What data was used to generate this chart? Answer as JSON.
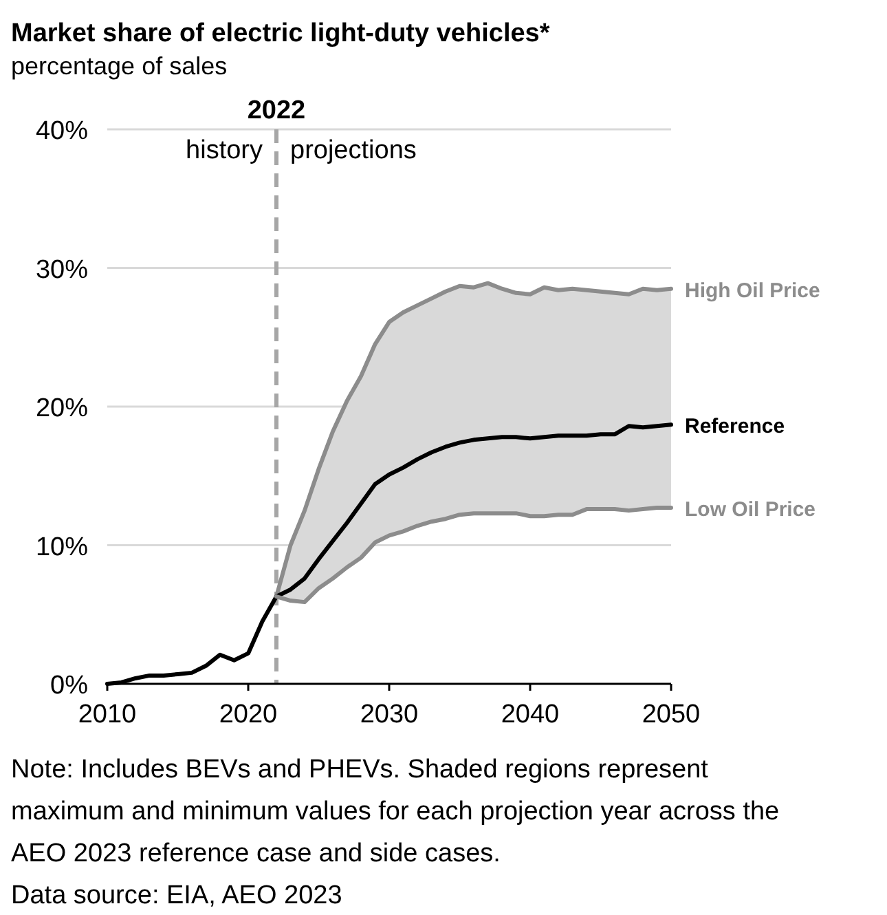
{
  "chart_data": {
    "type": "line",
    "title": "Market share of electric light-duty vehicles*",
    "subtitle": "percentage of sales",
    "x": [
      2010,
      2011,
      2012,
      2013,
      2014,
      2015,
      2016,
      2017,
      2018,
      2019,
      2020,
      2021,
      2022,
      2023,
      2024,
      2025,
      2026,
      2027,
      2028,
      2029,
      2030,
      2031,
      2032,
      2033,
      2034,
      2035,
      2036,
      2037,
      2038,
      2039,
      2040,
      2041,
      2042,
      2043,
      2044,
      2045,
      2046,
      2047,
      2048,
      2049,
      2050
    ],
    "series": [
      {
        "name": "High Oil Price",
        "color": "#8c8c8c",
        "x": [
          2022,
          2023,
          2024,
          2025,
          2026,
          2027,
          2028,
          2029,
          2030,
          2031,
          2032,
          2033,
          2034,
          2035,
          2036,
          2037,
          2038,
          2039,
          2040,
          2041,
          2042,
          2043,
          2044,
          2045,
          2046,
          2047,
          2048,
          2049,
          2050
        ],
        "values": [
          6.3,
          10.0,
          12.5,
          15.5,
          18.2,
          20.4,
          22.2,
          24.5,
          26.1,
          26.8,
          27.3,
          27.8,
          28.3,
          28.7,
          28.6,
          28.9,
          28.5,
          28.2,
          28.1,
          28.6,
          28.4,
          28.5,
          28.4,
          28.3,
          28.2,
          28.1,
          28.5,
          28.4,
          28.5
        ]
      },
      {
        "name": "Reference",
        "color": "#000000",
        "values": [
          0,
          0.1,
          0.4,
          0.6,
          0.6,
          0.7,
          0.8,
          1.3,
          2.1,
          1.7,
          2.2,
          4.5,
          6.3,
          6.8,
          7.6,
          9.0,
          10.3,
          11.6,
          13.0,
          14.4,
          15.1,
          15.6,
          16.2,
          16.7,
          17.1,
          17.4,
          17.6,
          17.7,
          17.8,
          17.8,
          17.7,
          17.8,
          17.9,
          17.9,
          17.9,
          18.0,
          18.0,
          18.6,
          18.5,
          18.6,
          18.7
        ],
        "lower": [
          null,
          null,
          null,
          null,
          null,
          null,
          null,
          null,
          null,
          null,
          null,
          null,
          6.3,
          6.0,
          5.9,
          6.9,
          7.6,
          8.4,
          9.1,
          10.2,
          10.7,
          11.0,
          11.4,
          11.7,
          11.9,
          12.2,
          12.3,
          12.3,
          12.3,
          12.3,
          12.1,
          12.1,
          12.2,
          12.2,
          12.6,
          12.6,
          12.6,
          12.5,
          12.6,
          12.7,
          12.7
        ],
        "upper": [
          null,
          null,
          null,
          null,
          null,
          null,
          null,
          null,
          null,
          null,
          null,
          null,
          6.3,
          10.0,
          12.5,
          15.5,
          18.2,
          20.4,
          22.2,
          24.5,
          26.1,
          26.8,
          27.3,
          27.8,
          28.3,
          28.7,
          28.6,
          28.9,
          28.5,
          28.2,
          28.1,
          28.6,
          28.4,
          28.5,
          28.4,
          28.3,
          28.2,
          28.1,
          28.5,
          28.4,
          28.5
        ]
      },
      {
        "name": "Low Oil Price",
        "color": "#8c8c8c",
        "x": [
          2022,
          2023,
          2024,
          2025,
          2026,
          2027,
          2028,
          2029,
          2030,
          2031,
          2032,
          2033,
          2034,
          2035,
          2036,
          2037,
          2038,
          2039,
          2040,
          2041,
          2042,
          2043,
          2044,
          2045,
          2046,
          2047,
          2048,
          2049,
          2050
        ],
        "values": [
          6.3,
          6.0,
          5.9,
          6.9,
          7.6,
          8.4,
          9.1,
          10.2,
          10.7,
          11.0,
          11.4,
          11.7,
          11.9,
          12.2,
          12.3,
          12.3,
          12.3,
          12.3,
          12.1,
          12.1,
          12.2,
          12.2,
          12.6,
          12.6,
          12.6,
          12.5,
          12.6,
          12.7,
          12.7
        ]
      }
    ],
    "xlim": [
      2010,
      2050
    ],
    "xticks": [
      2010,
      2020,
      2030,
      2040,
      2050
    ],
    "ylim": [
      0,
      40
    ],
    "yticks": [
      {
        "value": 0,
        "label": "0%"
      },
      {
        "value": 10,
        "label": "10%"
      },
      {
        "value": 20,
        "label": "20%"
      },
      {
        "value": 30,
        "label": "30%"
      },
      {
        "value": 40,
        "label": "40%"
      }
    ],
    "grid": "y",
    "marker": "none",
    "line_style": "solid",
    "ref_lines": [
      {
        "axis": "x",
        "value": 2022,
        "label": "2022",
        "color": "#a6a6a6",
        "line_style": "dashed"
      }
    ],
    "annotations": [
      "history",
      "projections",
      "Note: Includes BEVs and PHEVs. Shaded regions represent maximum and minimum values for each projection year across the AEO 2023 reference case and side cases.",
      "Data source: EIA, AEO 2023"
    ]
  }
}
